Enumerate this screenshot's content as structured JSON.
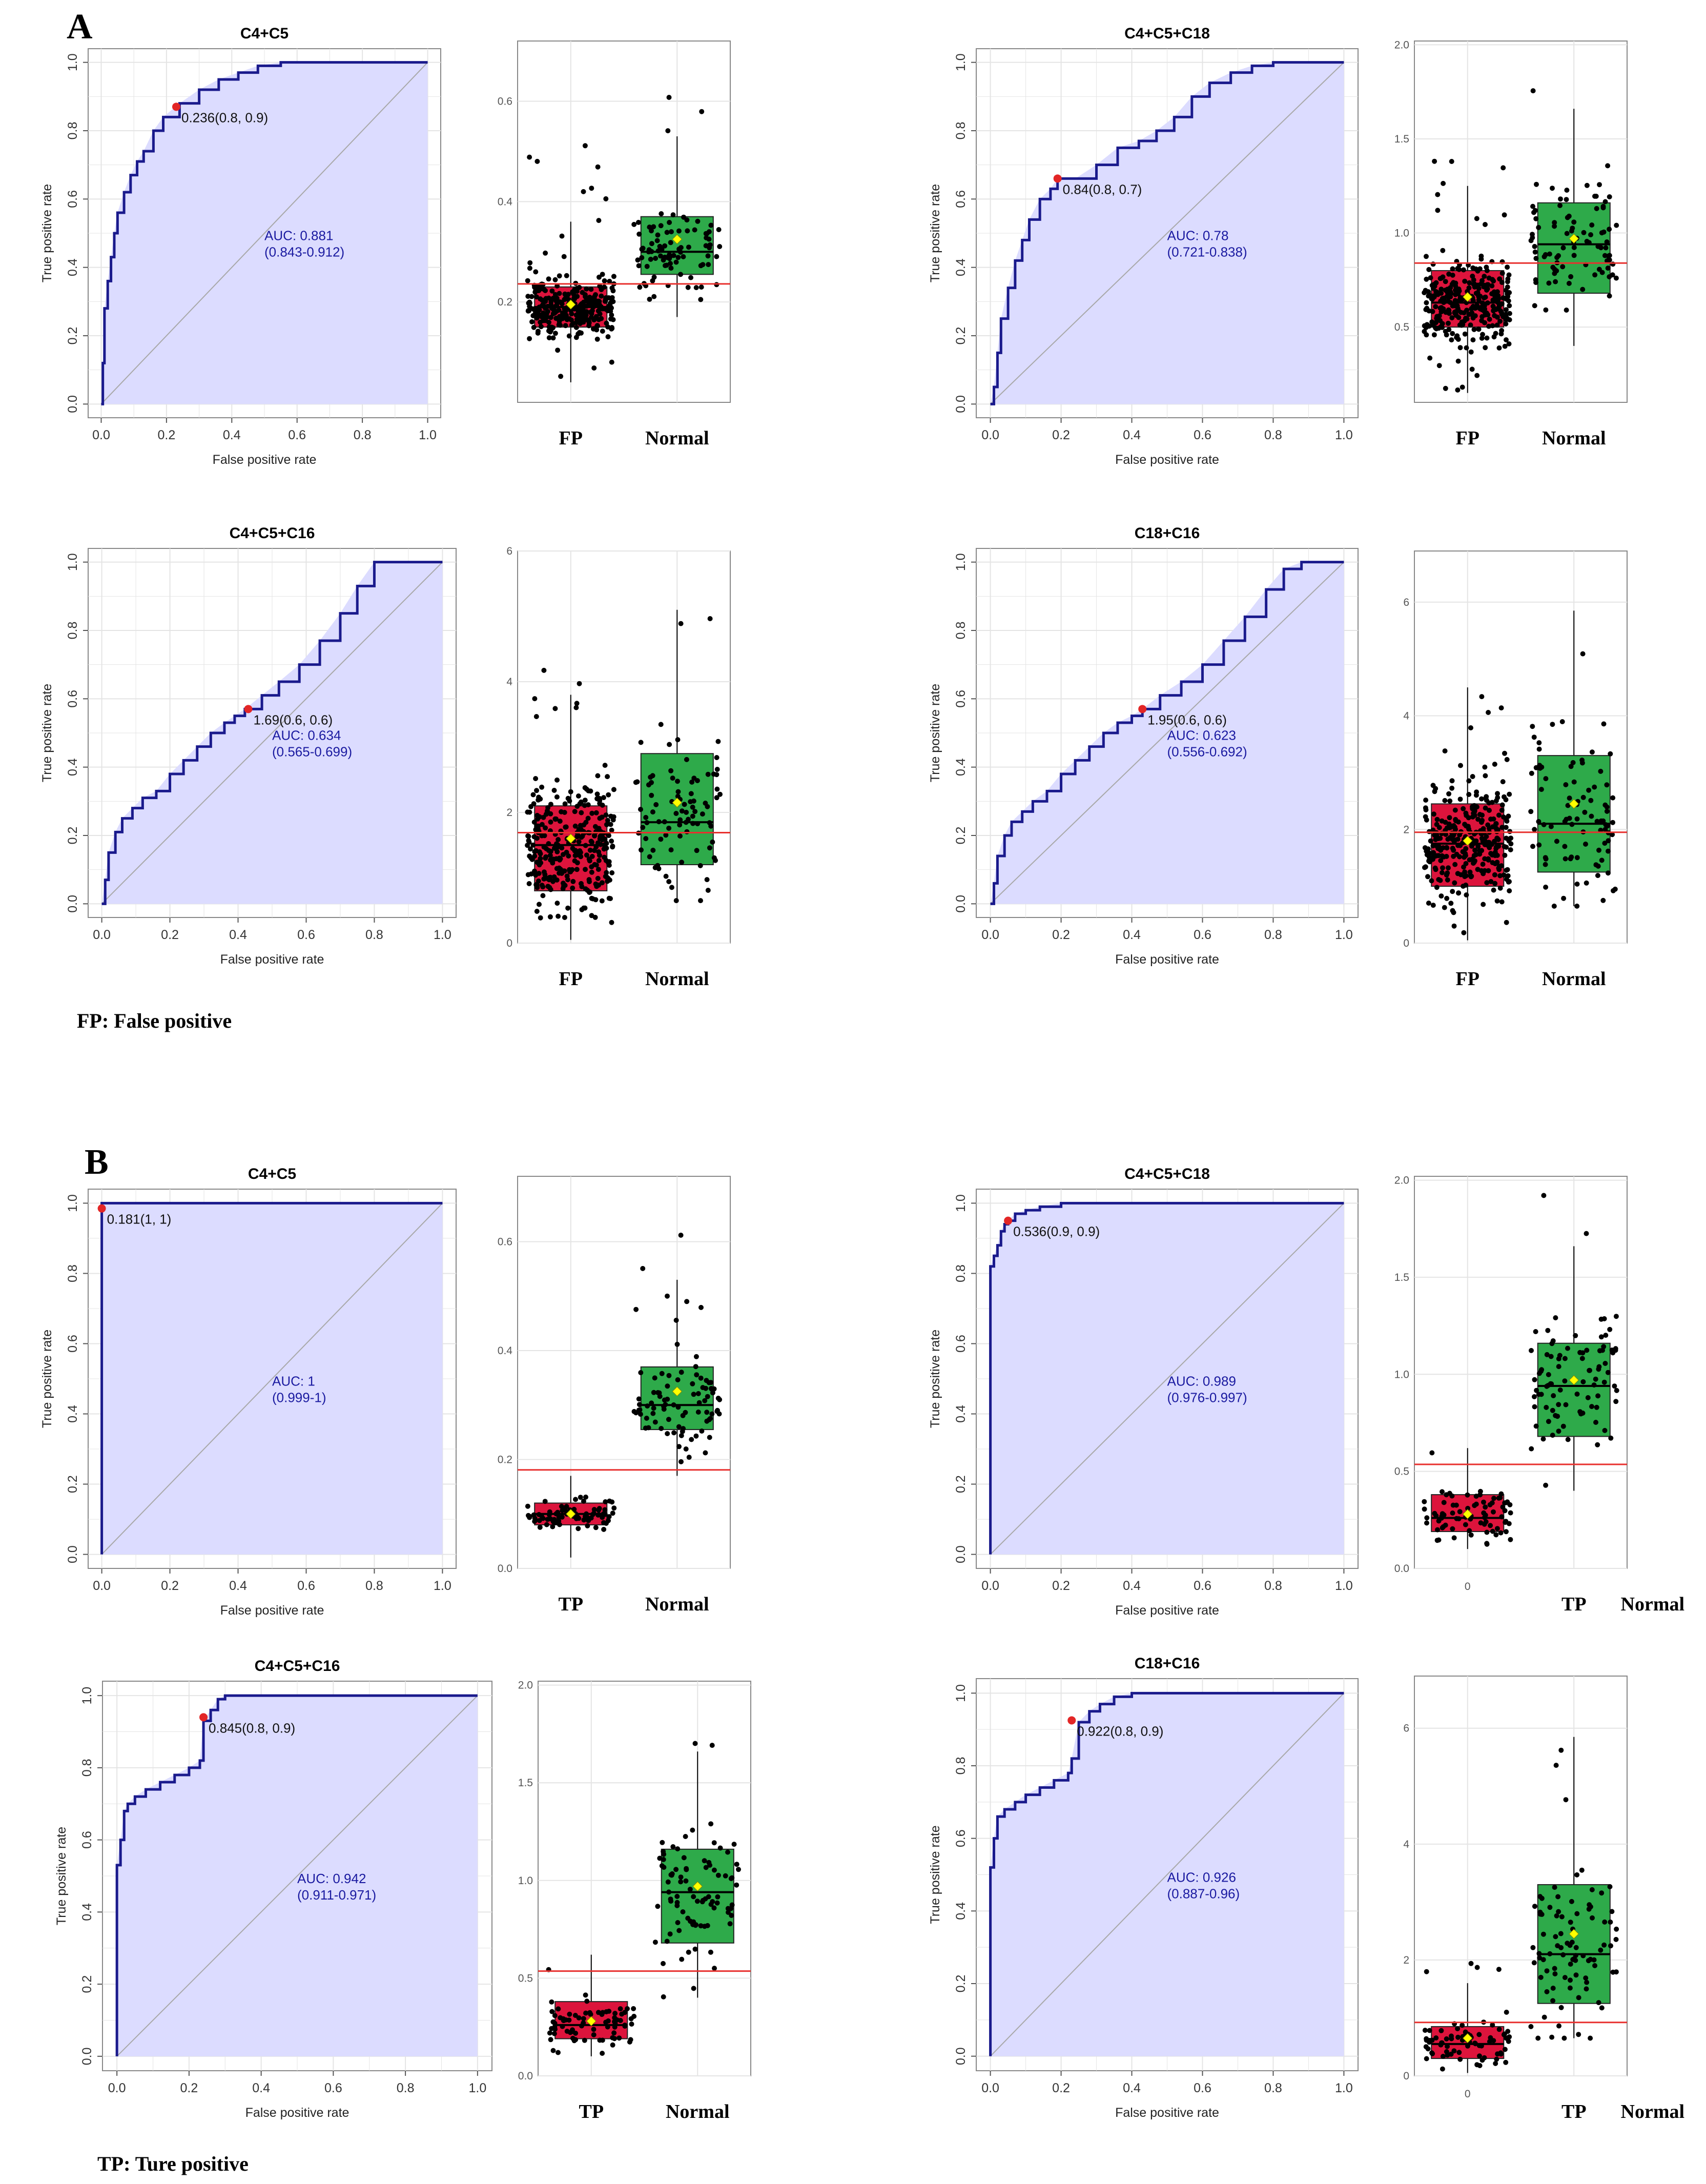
{
  "panel_letters": [
    "A",
    "B"
  ],
  "footnotes": {
    "A": "FP: False positive",
    "B": "TP: Ture positive"
  },
  "colors": {
    "roc_line": "#1a1a8c",
    "roc_fill": "#dcdcff",
    "box_low": "#dc143c",
    "box_high": "#2eaa4a",
    "cutoff_line": "#e8302e",
    "mean_marker": "#ffff00",
    "point": "#000000",
    "grid": "#e4e4e4"
  },
  "chart_data": [
    {
      "id": "A1",
      "type": "roc",
      "title": "C4+C5",
      "xlabel": "False positive rate",
      "ylabel": "True positive rate",
      "xlim": [
        0,
        1
      ],
      "ylim": [
        0,
        1
      ],
      "roc_x": [
        0,
        0.005,
        0.01,
        0.02,
        0.03,
        0.04,
        0.05,
        0.07,
        0.09,
        0.11,
        0.13,
        0.16,
        0.19,
        0.24,
        0.3,
        0.36,
        0.42,
        0.48,
        0.55,
        0.62,
        0.68,
        0.74,
        0.8,
        1
      ],
      "roc_y": [
        0,
        0.12,
        0.28,
        0.36,
        0.43,
        0.5,
        0.56,
        0.62,
        0.67,
        0.71,
        0.74,
        0.8,
        0.84,
        0.88,
        0.92,
        0.95,
        0.97,
        0.99,
        1,
        1,
        1,
        1,
        1,
        1
      ],
      "cutoff": {
        "x": 0.23,
        "y": 0.87,
        "label": "0.236(0.8, 0.9)"
      },
      "auc_label": "AUC: 0.881",
      "ci_label": "(0.843-0.912)"
    },
    {
      "id": "A1b",
      "type": "box",
      "categories": [
        "FP",
        "Normal"
      ],
      "ylim": [
        0,
        0.72
      ],
      "yticks": [
        0.2,
        0.4,
        0.6
      ],
      "cutoff": 0.236,
      "groups": [
        {
          "name": "FP",
          "q1": 0.15,
          "median": 0.19,
          "q3": 0.23,
          "lower": 0.04,
          "upper": 0.36,
          "mean": 0.195,
          "n": 320,
          "spread": [
            0.04,
            0.55
          ]
        },
        {
          "name": "Normal",
          "q1": 0.255,
          "median": 0.3,
          "q3": 0.37,
          "lower": 0.17,
          "upper": 0.53,
          "mean": 0.325,
          "n": 90,
          "spread": [
            0.17,
            0.7
          ]
        }
      ]
    },
    {
      "id": "A2",
      "type": "roc",
      "title": "C4+C5+C18",
      "xlabel": "False positive rate",
      "ylabel": "True positive rate",
      "xlim": [
        0,
        1
      ],
      "ylim": [
        0,
        1
      ],
      "roc_x": [
        0,
        0.01,
        0.02,
        0.03,
        0.05,
        0.07,
        0.09,
        0.11,
        0.14,
        0.17,
        0.19,
        0.24,
        0.3,
        0.36,
        0.42,
        0.47,
        0.52,
        0.57,
        0.62,
        0.68,
        0.74,
        0.8,
        0.88,
        1
      ],
      "roc_y": [
        0,
        0.05,
        0.15,
        0.25,
        0.34,
        0.42,
        0.48,
        0.54,
        0.6,
        0.63,
        0.66,
        0.66,
        0.7,
        0.75,
        0.77,
        0.8,
        0.84,
        0.9,
        0.94,
        0.97,
        0.99,
        1,
        1,
        1
      ],
      "cutoff": {
        "x": 0.19,
        "y": 0.66,
        "label": "0.84(0.8, 0.7)"
      },
      "auc_label": "AUC: 0.78",
      "ci_label": "(0.721-0.838)"
    },
    {
      "id": "A2b",
      "type": "box",
      "categories": [
        "FP",
        "Normal"
      ],
      "ylim": [
        0.1,
        2.02
      ],
      "yticks": [
        0.5,
        1.0,
        1.5,
        2.0
      ],
      "cutoff": 0.84,
      "groups": [
        {
          "name": "FP",
          "q1": 0.5,
          "median": 0.63,
          "q3": 0.8,
          "lower": 0.15,
          "upper": 1.25,
          "mean": 0.66,
          "n": 320,
          "spread": [
            0.15,
            1.5
          ]
        },
        {
          "name": "Normal",
          "q1": 0.68,
          "median": 0.94,
          "q3": 1.16,
          "lower": 0.4,
          "upper": 1.66,
          "mean": 0.97,
          "n": 90,
          "spread": [
            0.4,
            1.93
          ]
        }
      ]
    },
    {
      "id": "A3",
      "type": "roc",
      "title": "C4+C5+C16",
      "xlabel": "False positive rate",
      "ylabel": "True positive rate",
      "xlim": [
        0,
        1
      ],
      "ylim": [
        0,
        1
      ],
      "roc_x": [
        0,
        0.01,
        0.02,
        0.04,
        0.06,
        0.09,
        0.12,
        0.16,
        0.2,
        0.24,
        0.28,
        0.32,
        0.36,
        0.39,
        0.42,
        0.47,
        0.52,
        0.58,
        0.64,
        0.7,
        0.75,
        0.8,
        0.87,
        1
      ],
      "roc_y": [
        0,
        0.07,
        0.15,
        0.21,
        0.25,
        0.28,
        0.31,
        0.33,
        0.38,
        0.42,
        0.46,
        0.5,
        0.53,
        0.55,
        0.57,
        0.61,
        0.65,
        0.7,
        0.77,
        0.85,
        0.93,
        1,
        1,
        1
      ],
      "cutoff": {
        "x": 0.43,
        "y": 0.57,
        "label": "1.69(0.6, 0.6)"
      },
      "auc_label": "AUC: 0.634",
      "ci_label": "(0.565-0.699)"
    },
    {
      "id": "A3b",
      "type": "box",
      "categories": [
        "FP",
        "Normal"
      ],
      "ylim": [
        0,
        6.0
      ],
      "yticks": [
        0,
        2,
        4,
        6
      ],
      "cutoff": 1.69,
      "groups": [
        {
          "name": "FP",
          "q1": 0.8,
          "median": 1.5,
          "q3": 2.1,
          "lower": 0.05,
          "upper": 3.8,
          "mean": 1.6,
          "n": 320,
          "spread": [
            0.05,
            4.3
          ]
        },
        {
          "name": "Normal",
          "q1": 1.2,
          "median": 1.85,
          "q3": 2.9,
          "lower": 0.65,
          "upper": 5.1,
          "mean": 2.15,
          "n": 90,
          "spread": [
            0.65,
            5.8
          ]
        }
      ]
    },
    {
      "id": "A4",
      "type": "roc",
      "title": "C18+C16",
      "xlabel": "False positive rate",
      "ylabel": "True positive rate",
      "xlim": [
        0,
        1
      ],
      "ylim": [
        0,
        1
      ],
      "roc_x": [
        0,
        0.01,
        0.02,
        0.04,
        0.06,
        0.09,
        0.12,
        0.16,
        0.2,
        0.24,
        0.28,
        0.32,
        0.36,
        0.4,
        0.43,
        0.48,
        0.54,
        0.6,
        0.66,
        0.72,
        0.78,
        0.83,
        0.88,
        1
      ],
      "roc_y": [
        0,
        0.06,
        0.14,
        0.2,
        0.24,
        0.27,
        0.3,
        0.33,
        0.38,
        0.42,
        0.46,
        0.5,
        0.53,
        0.55,
        0.57,
        0.61,
        0.65,
        0.7,
        0.77,
        0.84,
        0.92,
        0.98,
        1,
        1
      ],
      "cutoff": {
        "x": 0.43,
        "y": 0.57,
        "label": "1.95(0.6, 0.6)"
      },
      "auc_label": "AUC: 0.623",
      "ci_label": "(0.556-0.692)"
    },
    {
      "id": "A4b",
      "type": "box",
      "categories": [
        "FP",
        "Normal"
      ],
      "ylim": [
        0,
        6.9
      ],
      "yticks": [
        0,
        2,
        4,
        6
      ],
      "cutoff": 1.95,
      "groups": [
        {
          "name": "FP",
          "q1": 1.0,
          "median": 1.75,
          "q3": 2.45,
          "lower": 0.05,
          "upper": 4.5,
          "mean": 1.8,
          "n": 320,
          "spread": [
            0.05,
            5.0
          ]
        },
        {
          "name": "Normal",
          "q1": 1.25,
          "median": 2.1,
          "q3": 3.3,
          "lower": 0.65,
          "upper": 5.85,
          "mean": 2.45,
          "n": 90,
          "spread": [
            0.65,
            6.6
          ]
        }
      ]
    },
    {
      "id": "B1",
      "type": "roc",
      "title": "C4+C5",
      "xlabel": "False positive rate",
      "ylabel": "True positive rate",
      "xlim": [
        0,
        1
      ],
      "ylim": [
        0,
        1
      ],
      "roc_x": [
        0,
        0,
        0,
        0.2,
        0.5,
        1
      ],
      "roc_y": [
        0,
        0.98,
        1,
        1,
        1,
        1
      ],
      "cutoff": {
        "x": 0.0,
        "y": 0.985,
        "label": "0.181(1, 1)"
      },
      "auc_label": "AUC: 1",
      "ci_label": "(0.999-1)"
    },
    {
      "id": "B1b",
      "type": "box",
      "categories": [
        "TP",
        "Normal"
      ],
      "ylim": [
        0,
        0.72
      ],
      "yticks": [
        0.0,
        0.2,
        0.4,
        0.6
      ],
      "cutoff": 0.181,
      "groups": [
        {
          "name": "TP",
          "q1": 0.08,
          "median": 0.1,
          "q3": 0.12,
          "lower": 0.02,
          "upper": 0.17,
          "mean": 0.1,
          "n": 80,
          "spread": [
            0.02,
            0.18
          ]
        },
        {
          "name": "Normal",
          "q1": 0.255,
          "median": 0.3,
          "q3": 0.37,
          "lower": 0.17,
          "upper": 0.53,
          "mean": 0.325,
          "n": 90,
          "spread": [
            0.17,
            0.7
          ]
        }
      ]
    },
    {
      "id": "B2",
      "type": "roc",
      "title": "C4+C5+C18",
      "xlabel": "False positive rate",
      "ylabel": "True positive rate",
      "xlim": [
        0,
        1
      ],
      "ylim": [
        0,
        1
      ],
      "roc_x": [
        0,
        0,
        0.01,
        0.02,
        0.03,
        0.04,
        0.05,
        0.07,
        0.1,
        0.14,
        0.2,
        0.3,
        1
      ],
      "roc_y": [
        0,
        0.82,
        0.85,
        0.88,
        0.92,
        0.94,
        0.95,
        0.97,
        0.98,
        0.99,
        1,
        1,
        1
      ],
      "cutoff": {
        "x": 0.05,
        "y": 0.95,
        "label": "0.536(0.9, 0.9)"
      },
      "auc_label": "AUC: 0.989",
      "ci_label": "(0.976-0.997)"
    },
    {
      "id": "B2b",
      "type": "box",
      "categories": [
        "0",
        "TP",
        "Normal"
      ],
      "ylim": [
        0,
        2.02
      ],
      "yticks": [
        0.0,
        0.5,
        1.0,
        1.5,
        2.0
      ],
      "cutoff": 0.536,
      "groups": [
        {
          "name": "TP",
          "q1": 0.19,
          "median": 0.26,
          "q3": 0.38,
          "lower": 0.1,
          "upper": 0.62,
          "mean": 0.28,
          "n": 80,
          "spread": [
            0.1,
            0.62
          ]
        },
        {
          "name": "Normal",
          "q1": 0.68,
          "median": 0.94,
          "q3": 1.16,
          "lower": 0.4,
          "upper": 1.66,
          "mean": 0.97,
          "n": 90,
          "spread": [
            0.4,
            1.93
          ]
        }
      ]
    },
    {
      "id": "B3",
      "type": "roc",
      "title": "C4+C5+C16",
      "xlabel": "False positive rate",
      "ylabel": "True positive rate",
      "xlim": [
        0,
        1
      ],
      "ylim": [
        0,
        1
      ],
      "roc_x": [
        0,
        0,
        0.01,
        0.02,
        0.03,
        0.05,
        0.08,
        0.12,
        0.16,
        0.2,
        0.23,
        0.24,
        0.26,
        0.28,
        0.3,
        0.35,
        1
      ],
      "roc_y": [
        0,
        0.53,
        0.6,
        0.68,
        0.7,
        0.72,
        0.74,
        0.76,
        0.78,
        0.8,
        0.82,
        0.93,
        0.96,
        0.99,
        1,
        1,
        1
      ],
      "cutoff": {
        "x": 0.24,
        "y": 0.94,
        "label": "0.845(0.8, 0.9)"
      },
      "auc_label": "AUC: 0.942",
      "ci_label": "(0.911-0.971)"
    },
    {
      "id": "B3b",
      "type": "box",
      "categories": [
        "TP",
        "Normal"
      ],
      "ylim": [
        0,
        2.02
      ],
      "yticks": [
        0.0,
        0.5,
        1.0,
        1.5,
        2.0
      ],
      "cutoff": 0.536,
      "groups": [
        {
          "name": "TP",
          "q1": 0.19,
          "median": 0.26,
          "q3": 0.38,
          "lower": 0.1,
          "upper": 0.62,
          "mean": 0.28,
          "n": 80,
          "spread": [
            0.1,
            0.62
          ]
        },
        {
          "name": "Normal",
          "q1": 0.68,
          "median": 0.94,
          "q3": 1.16,
          "lower": 0.4,
          "upper": 1.66,
          "mean": 0.97,
          "n": 90,
          "spread": [
            0.4,
            1.93
          ]
        }
      ]
    },
    {
      "id": "B4",
      "type": "roc",
      "title": "C18+C16",
      "xlabel": "False positive rate",
      "ylabel": "True positive rate",
      "xlim": [
        0,
        1
      ],
      "ylim": [
        0,
        1
      ],
      "roc_x": [
        0,
        0,
        0.01,
        0.02,
        0.04,
        0.07,
        0.1,
        0.14,
        0.18,
        0.22,
        0.23,
        0.25,
        0.28,
        0.31,
        0.35,
        0.4,
        0.45,
        1
      ],
      "roc_y": [
        0,
        0.52,
        0.6,
        0.66,
        0.68,
        0.7,
        0.72,
        0.74,
        0.76,
        0.78,
        0.82,
        0.92,
        0.95,
        0.97,
        0.99,
        1,
        1,
        1
      ],
      "cutoff": {
        "x": 0.23,
        "y": 0.925,
        "label": "0.922(0.8, 0.9)"
      },
      "auc_label": "AUC: 0.926",
      "ci_label": "(0.887-0.96)"
    },
    {
      "id": "B4b",
      "type": "box",
      "categories": [
        "0",
        "TP",
        "Normal"
      ],
      "ylim": [
        0,
        6.9
      ],
      "yticks": [
        0,
        2,
        4,
        6
      ],
      "cutoff": 0.922,
      "groups": [
        {
          "name": "TP",
          "q1": 0.3,
          "median": 0.55,
          "q3": 0.85,
          "lower": 0.05,
          "upper": 1.6,
          "mean": 0.65,
          "n": 80,
          "spread": [
            0.05,
            2.1
          ]
        },
        {
          "name": "Normal",
          "q1": 1.25,
          "median": 2.1,
          "q3": 3.3,
          "lower": 0.65,
          "upper": 5.85,
          "mean": 2.45,
          "n": 90,
          "spread": [
            0.65,
            6.6
          ]
        }
      ]
    }
  ]
}
